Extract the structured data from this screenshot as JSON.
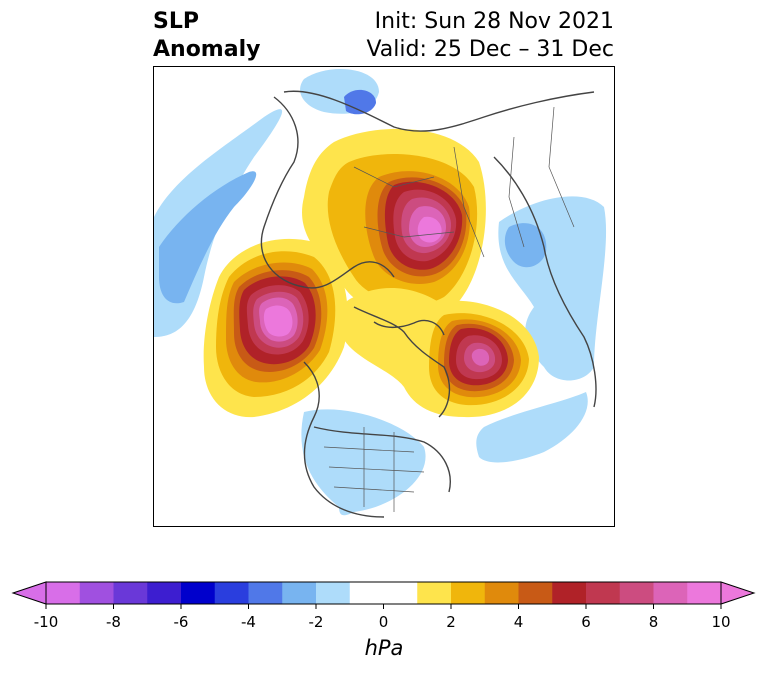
{
  "title": {
    "left_line1": "SLP",
    "left_line2": "Anomaly",
    "right_line1": "Init: Sun 28 Nov 2021",
    "right_line2": "Valid: 25 Dec – 31 Dec"
  },
  "colorbar": {
    "unit": "hPa",
    "ticks": [
      "-10",
      "-8",
      "-6",
      "-4",
      "-2",
      "0",
      "2",
      "4",
      "6",
      "8",
      "10"
    ],
    "bins": [
      "#d86ee8",
      "#a050e0",
      "#6a38d8",
      "#3d1ed0",
      "#0000cc",
      "#2a3ede",
      "#5078e8",
      "#78b4f0",
      "#aedcfa",
      "#ffffff",
      "#ffffff",
      "#fee44c",
      "#f0b60c",
      "#e08a0c",
      "#c85a16",
      "#b02228",
      "#c03850",
      "#cc4c80",
      "#dc64b8",
      "#ec78dc"
    ],
    "extend_low_color": "#d86ee8",
    "extend_high_color": "#ec78dc"
  },
  "map": {
    "projection": "polar-stereographic",
    "region": "Northern Hemisphere",
    "features": [
      {
        "name": "positive-anomaly-siberia-arctic",
        "peak": "> 10 hPa"
      },
      {
        "name": "positive-anomaly-gulf-of-alaska",
        "peak": "> 10 hPa"
      },
      {
        "name": "positive-anomaly-north-atlantic",
        "peak": "about 8 hPa"
      },
      {
        "name": "negative-anomaly-north-pacific",
        "peak": "about -4 hPa"
      },
      {
        "name": "negative-anomaly-north-america",
        "peak": "about -2 hPa"
      },
      {
        "name": "negative-anomaly-europe",
        "peak": "about -4 hPa"
      }
    ]
  }
}
